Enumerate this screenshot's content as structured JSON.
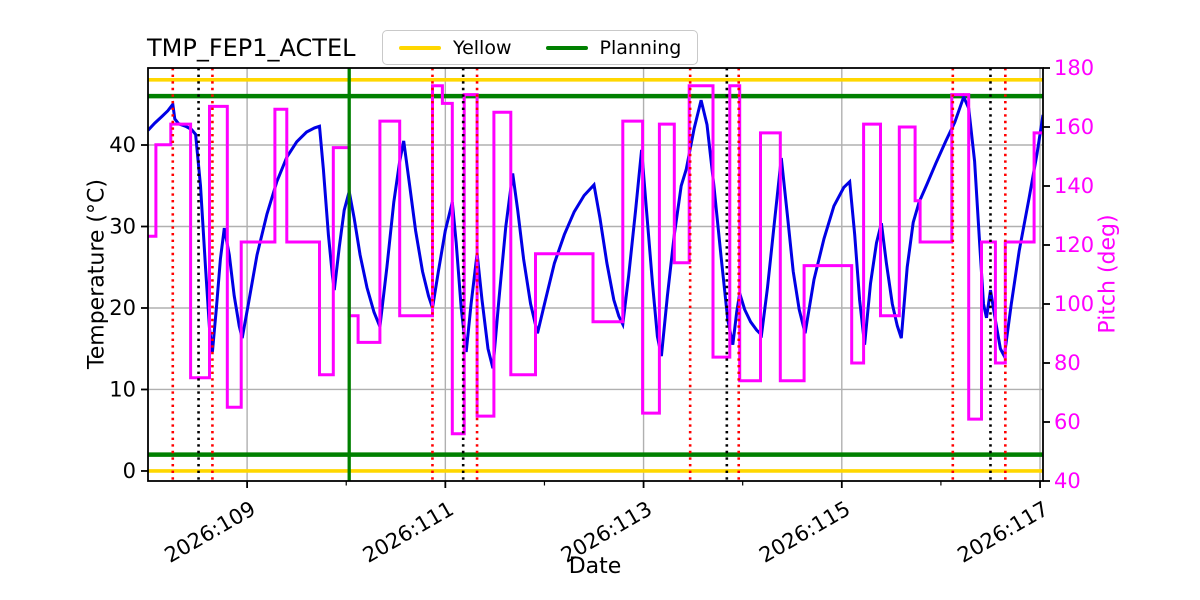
{
  "legend": {
    "entries": [
      {
        "label": "Yellow",
        "color": "#FFD700"
      },
      {
        "label": "Planning",
        "color": "#008000"
      }
    ]
  },
  "chart_data": {
    "type": "line",
    "title": "TMP_FEP1_ACTEL",
    "xlabel": "Date",
    "ylabel_left": "Temperature (°C)",
    "ylabel_right": "Pitch (deg)",
    "x_range": [
      108.0,
      117.03
    ],
    "x_major_ticks": [
      {
        "value": 109,
        "label": "2026:109"
      },
      {
        "value": 111,
        "label": "2026:111"
      },
      {
        "value": 113,
        "label": "2026:113"
      },
      {
        "value": 115,
        "label": "2026:115"
      },
      {
        "value": 117,
        "label": "2026:117"
      }
    ],
    "x_minor_ticks": [
      110,
      112,
      114,
      116
    ],
    "y_left": {
      "range": [
        -1.23,
        49.45
      ],
      "ticks": [
        0,
        10,
        20,
        30,
        40
      ],
      "color": "#000000"
    },
    "y_right": {
      "range": [
        40,
        180
      ],
      "ticks": [
        40,
        60,
        80,
        100,
        120,
        140,
        160,
        180
      ],
      "color": "#ff00ff"
    },
    "grid_on": true,
    "grid_color": "#b0b0b0",
    "legend_position": "top-center",
    "limit_lines": [
      {
        "name": "Yellow",
        "color": "#FFD700",
        "axis": "left",
        "values": [
          0,
          48
        ],
        "width": 3.6
      },
      {
        "name": "Planning",
        "color": "#008000",
        "axis": "left",
        "values": [
          2,
          46
        ],
        "width": 4.5
      }
    ],
    "vlines": [
      {
        "x": 110.03,
        "color": "#008000",
        "style": "solid"
      },
      {
        "x": 108.25,
        "color": "#ff0000",
        "style": "dotted"
      },
      {
        "x": 108.65,
        "color": "#ff0000",
        "style": "dotted"
      },
      {
        "x": 110.87,
        "color": "#ff0000",
        "style": "dotted"
      },
      {
        "x": 111.32,
        "color": "#ff0000",
        "style": "dotted"
      },
      {
        "x": 113.47,
        "color": "#ff0000",
        "style": "dotted"
      },
      {
        "x": 113.96,
        "color": "#ff0000",
        "style": "dotted"
      },
      {
        "x": 116.12,
        "color": "#ff0000",
        "style": "dotted"
      },
      {
        "x": 116.65,
        "color": "#ff0000",
        "style": "dotted"
      },
      {
        "x": 108.51,
        "color": "#000000",
        "style": "dotted"
      },
      {
        "x": 111.18,
        "color": "#000000",
        "style": "dotted"
      },
      {
        "x": 113.84,
        "color": "#000000",
        "style": "dotted"
      },
      {
        "x": 116.5,
        "color": "#000000",
        "style": "dotted"
      }
    ],
    "series": [
      {
        "name": "temperature",
        "axis": "left",
        "color": "#0000e6",
        "type": "line",
        "width": 3,
        "points": [
          [
            108.0,
            41.8
          ],
          [
            108.07,
            42.7
          ],
          [
            108.14,
            43.5
          ],
          [
            108.2,
            44.2
          ],
          [
            108.25,
            45.0
          ],
          [
            108.27,
            43.2
          ],
          [
            108.31,
            42.6
          ],
          [
            108.38,
            42.3
          ],
          [
            108.44,
            41.9
          ],
          [
            108.48,
            41.3
          ],
          [
            108.53,
            35.0
          ],
          [
            108.58,
            25.0
          ],
          [
            108.62,
            17.5
          ],
          [
            108.65,
            14.6
          ],
          [
            108.69,
            20.0
          ],
          [
            108.73,
            26.0
          ],
          [
            108.77,
            29.8
          ],
          [
            108.82,
            26.5
          ],
          [
            108.87,
            21.5
          ],
          [
            108.92,
            17.8
          ],
          [
            108.95,
            16.3
          ],
          [
            109.02,
            21.0
          ],
          [
            109.1,
            26.5
          ],
          [
            109.2,
            31.5
          ],
          [
            109.3,
            35.5
          ],
          [
            109.4,
            38.5
          ],
          [
            109.5,
            40.4
          ],
          [
            109.6,
            41.6
          ],
          [
            109.68,
            42.1
          ],
          [
            109.73,
            42.3
          ],
          [
            109.77,
            37.0
          ],
          [
            109.82,
            29.0
          ],
          [
            109.86,
            24.0
          ],
          [
            109.88,
            22.2
          ],
          [
            109.93,
            27.5
          ],
          [
            109.98,
            32.0
          ],
          [
            110.03,
            34.3
          ],
          [
            110.08,
            31.0
          ],
          [
            110.14,
            26.5
          ],
          [
            110.21,
            22.5
          ],
          [
            110.28,
            19.5
          ],
          [
            110.34,
            17.7
          ],
          [
            110.41,
            25.0
          ],
          [
            110.48,
            33.0
          ],
          [
            110.54,
            38.0
          ],
          [
            110.58,
            40.5
          ],
          [
            110.64,
            35.0
          ],
          [
            110.7,
            29.5
          ],
          [
            110.77,
            24.5
          ],
          [
            110.83,
            21.5
          ],
          [
            110.87,
            20.0
          ],
          [
            110.93,
            24.5
          ],
          [
            111.0,
            29.5
          ],
          [
            111.07,
            33.0
          ],
          [
            111.11,
            28.0
          ],
          [
            111.16,
            20.0
          ],
          [
            111.21,
            14.6
          ],
          [
            111.26,
            20.5
          ],
          [
            111.32,
            26.7
          ],
          [
            111.37,
            21.0
          ],
          [
            111.43,
            15.0
          ],
          [
            111.48,
            12.6
          ],
          [
            111.54,
            21.0
          ],
          [
            111.61,
            30.0
          ],
          [
            111.68,
            36.5
          ],
          [
            111.73,
            32.0
          ],
          [
            111.79,
            26.0
          ],
          [
            111.86,
            20.5
          ],
          [
            111.93,
            16.9
          ],
          [
            112.0,
            20.5
          ],
          [
            112.1,
            25.5
          ],
          [
            112.2,
            29.0
          ],
          [
            112.3,
            31.8
          ],
          [
            112.4,
            33.8
          ],
          [
            112.5,
            35.1
          ],
          [
            112.56,
            31.0
          ],
          [
            112.63,
            25.5
          ],
          [
            112.7,
            21.0
          ],
          [
            112.75,
            19.0
          ],
          [
            112.79,
            18.0
          ],
          [
            112.85,
            24.0
          ],
          [
            112.92,
            32.0
          ],
          [
            112.98,
            39.4
          ],
          [
            113.03,
            32.0
          ],
          [
            113.09,
            23.0
          ],
          [
            113.14,
            16.5
          ],
          [
            113.18,
            14.1
          ],
          [
            113.24,
            21.5
          ],
          [
            113.31,
            29.0
          ],
          [
            113.38,
            35.0
          ],
          [
            113.43,
            37.0
          ],
          [
            113.51,
            42.0
          ],
          [
            113.58,
            45.5
          ],
          [
            113.64,
            42.5
          ],
          [
            113.71,
            35.0
          ],
          [
            113.78,
            26.5
          ],
          [
            113.85,
            18.5
          ],
          [
            113.9,
            15.5
          ],
          [
            113.94,
            19.5
          ],
          [
            113.97,
            21.8
          ],
          [
            114.02,
            19.8
          ],
          [
            114.08,
            18.3
          ],
          [
            114.14,
            17.3
          ],
          [
            114.19,
            16.7
          ],
          [
            114.25,
            22.5
          ],
          [
            114.32,
            30.5
          ],
          [
            114.39,
            38.4
          ],
          [
            114.45,
            31.5
          ],
          [
            114.51,
            24.5
          ],
          [
            114.57,
            19.8
          ],
          [
            114.63,
            16.9
          ],
          [
            114.72,
            23.5
          ],
          [
            114.82,
            28.5
          ],
          [
            114.92,
            32.5
          ],
          [
            115.02,
            34.8
          ],
          [
            115.08,
            35.5
          ],
          [
            115.13,
            29.0
          ],
          [
            115.18,
            21.0
          ],
          [
            115.23,
            15.5
          ],
          [
            115.29,
            23.0
          ],
          [
            115.35,
            28.0
          ],
          [
            115.4,
            30.4
          ],
          [
            115.45,
            25.5
          ],
          [
            115.51,
            20.5
          ],
          [
            115.56,
            17.8
          ],
          [
            115.6,
            16.3
          ],
          [
            115.66,
            25.0
          ],
          [
            115.72,
            30.5
          ],
          [
            115.78,
            33.0
          ],
          [
            115.86,
            35.2
          ],
          [
            115.95,
            37.8
          ],
          [
            116.05,
            40.5
          ],
          [
            116.14,
            42.8
          ],
          [
            116.23,
            45.9
          ],
          [
            116.28,
            44.5
          ],
          [
            116.34,
            38.0
          ],
          [
            116.39,
            28.0
          ],
          [
            116.43,
            20.5
          ],
          [
            116.46,
            18.8
          ],
          [
            116.5,
            22.2
          ],
          [
            116.55,
            18.5
          ],
          [
            116.6,
            15.0
          ],
          [
            116.64,
            14.1
          ],
          [
            116.71,
            20.5
          ],
          [
            116.79,
            27.0
          ],
          [
            116.89,
            33.5
          ],
          [
            116.97,
            39.0
          ],
          [
            117.03,
            43.7
          ]
        ]
      },
      {
        "name": "pitch",
        "axis": "right",
        "color": "#ff00ff",
        "type": "step",
        "width": 3,
        "segments": [
          [
            108.0,
            108.08,
            123
          ],
          [
            108.08,
            108.23,
            154
          ],
          [
            108.23,
            108.43,
            161
          ],
          [
            108.43,
            108.62,
            75
          ],
          [
            108.62,
            108.8,
            167
          ],
          [
            108.8,
            108.94,
            65
          ],
          [
            108.94,
            109.28,
            121
          ],
          [
            109.28,
            109.4,
            166
          ],
          [
            109.4,
            109.73,
            121
          ],
          [
            109.73,
            109.87,
            76
          ],
          [
            109.87,
            110.03,
            153
          ],
          [
            110.03,
            110.12,
            96
          ],
          [
            110.12,
            110.34,
            87
          ],
          [
            110.34,
            110.54,
            162
          ],
          [
            110.54,
            110.87,
            96
          ],
          [
            110.87,
            110.97,
            174
          ],
          [
            110.97,
            111.07,
            168
          ],
          [
            111.07,
            111.19,
            56
          ],
          [
            111.19,
            111.32,
            171
          ],
          [
            111.32,
            111.49,
            62
          ],
          [
            111.49,
            111.66,
            165
          ],
          [
            111.66,
            111.91,
            76
          ],
          [
            111.91,
            112.49,
            117
          ],
          [
            112.49,
            112.79,
            94
          ],
          [
            112.79,
            112.99,
            162
          ],
          [
            112.99,
            113.16,
            63
          ],
          [
            113.16,
            113.31,
            161
          ],
          [
            113.31,
            113.46,
            114
          ],
          [
            113.46,
            113.7,
            174
          ],
          [
            113.7,
            113.87,
            82
          ],
          [
            113.87,
            113.97,
            174
          ],
          [
            113.97,
            114.18,
            74
          ],
          [
            114.18,
            114.38,
            158
          ],
          [
            114.38,
            114.62,
            74
          ],
          [
            114.62,
            115.1,
            113
          ],
          [
            115.1,
            115.22,
            80
          ],
          [
            115.22,
            115.39,
            161
          ],
          [
            115.39,
            115.58,
            96
          ],
          [
            115.58,
            115.74,
            160
          ],
          [
            115.74,
            115.79,
            135
          ],
          [
            115.79,
            116.11,
            121
          ],
          [
            116.11,
            116.28,
            171
          ],
          [
            116.28,
            116.41,
            61
          ],
          [
            116.41,
            116.55,
            121
          ],
          [
            116.55,
            116.65,
            80
          ],
          [
            116.65,
            116.94,
            121
          ],
          [
            116.94,
            117.03,
            158
          ]
        ]
      }
    ]
  }
}
